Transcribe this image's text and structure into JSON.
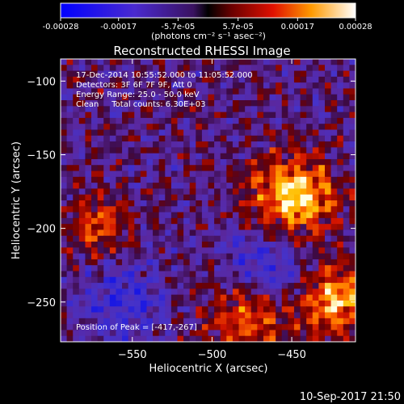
{
  "chart_data": {
    "type": "heatmap",
    "title": "Reconstructed RHESSI Image",
    "xlabel": "Heliocentric X (arcsec)",
    "ylabel": "Heliocentric Y (arcsec)",
    "xlim": [
      -595,
      -410
    ],
    "ylim": [
      -277,
      -85
    ],
    "x_ticks": [
      -550,
      -500,
      -450
    ],
    "y_ticks": [
      -100,
      -150,
      -200,
      -250
    ],
    "colorbar": {
      "range": [
        -0.00028,
        0.00028
      ],
      "ticks": [
        {
          "value": -0.00028,
          "label": "-0.00028"
        },
        {
          "value": -0.00017,
          "label": "-0.00017"
        },
        {
          "value": -5.7e-05,
          "label": "-5.7e-05"
        },
        {
          "value": 5.7e-05,
          "label": "5.7e-05"
        },
        {
          "value": 0.00017,
          "label": "0.00017"
        },
        {
          "value": 0.00028,
          "label": "0.00028"
        }
      ],
      "unit_label": "(photons cm⁻² s⁻¹ asec⁻²)"
    },
    "annotations": [
      "17-Dec-2014 10:55:52.000 to 11:05:52.000",
      "Detectors: 3F 6F 7F 9F, Att 0",
      "Energy Range: 25.0 - 50.0 keV",
      "Clean     Total counts: 6.30E+03"
    ],
    "peak_label": "Position of Peak = [-417,-267]",
    "grid": false
  },
  "footer": {
    "timestamp": "10-Sep-2017 21:50"
  }
}
